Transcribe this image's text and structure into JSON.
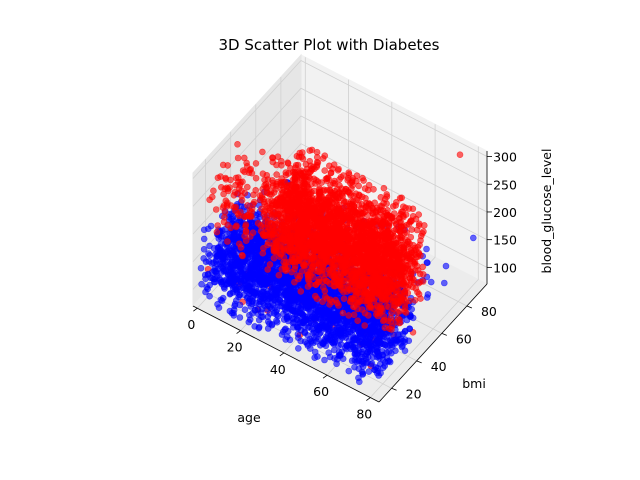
{
  "chart_data": {
    "type": "scatter",
    "projection": "3d",
    "title": "3D Scatter Plot with Diabetes",
    "xlabel": "age",
    "ylabel": "bmi",
    "zlabel": "blood_glucose_level",
    "xlim": [
      -2,
      84
    ],
    "ylim": [
      10,
      96
    ],
    "zlim": [
      70,
      310
    ],
    "xticks": [
      0,
      20,
      40,
      60,
      80
    ],
    "yticks": [
      20,
      40,
      60,
      80
    ],
    "zticks": [
      100,
      150,
      200,
      250,
      300
    ],
    "grid": true,
    "legend": "none",
    "series": [
      {
        "color": "#0000ff",
        "alpha": 0.6,
        "regions": [
          {
            "x": [
              0,
              80
            ],
            "y": [
              12,
              45
            ],
            "z": [
              80,
              200
            ],
            "density": "very-high"
          },
          {
            "x": [
              0,
              80
            ],
            "y": [
              45,
              80
            ],
            "z": [
              80,
              160
            ],
            "density": "low"
          }
        ],
        "outliers": [
          {
            "x": 80,
            "y": 92,
            "z": 155
          },
          {
            "x": 3,
            "y": 55,
            "z": 160
          }
        ]
      },
      {
        "color": "#ff0000",
        "alpha": 0.6,
        "regions": [
          {
            "x": [
              20,
              80
            ],
            "y": [
              25,
              55
            ],
            "z": [
              140,
              300
            ],
            "density": "very-high"
          },
          {
            "x": [
              0,
              20
            ],
            "y": [
              15,
              45
            ],
            "z": [
              160,
              300
            ],
            "density": "medium"
          },
          {
            "x": [
              0,
              80
            ],
            "y": [
              15,
              60
            ],
            "z": [
              80,
              140
            ],
            "density": "low"
          }
        ],
        "outliers": [
          {
            "x": 75,
            "y": 90,
            "z": 300
          }
        ]
      }
    ]
  }
}
